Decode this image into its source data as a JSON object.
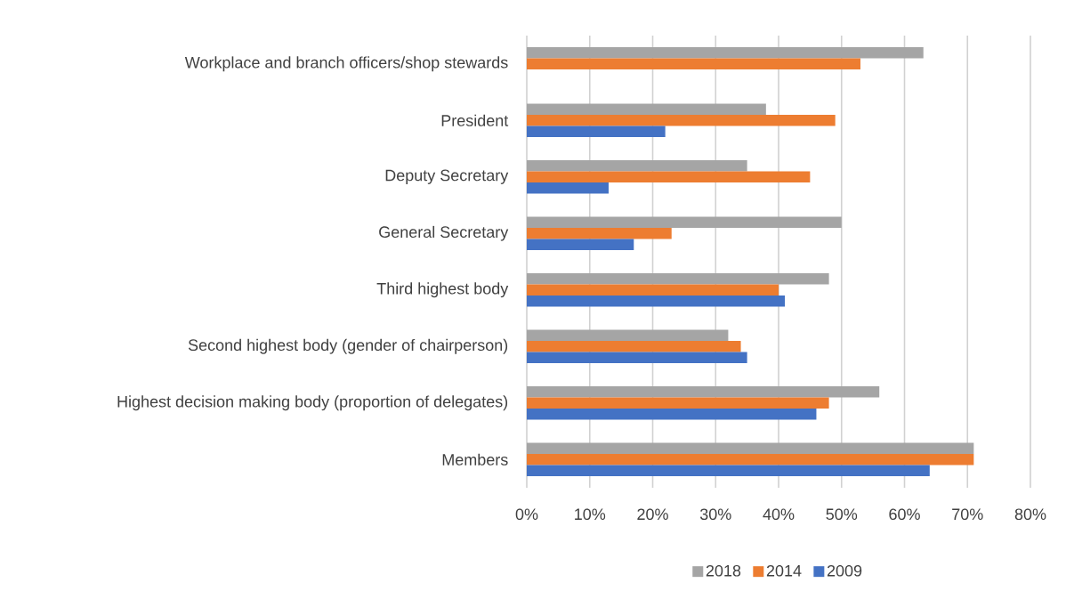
{
  "chart_data": {
    "type": "bar",
    "orientation": "horizontal",
    "categories": [
      "Workplace and branch officers/shop stewards",
      "President",
      "Deputy Secretary",
      "General Secretary",
      "Third highest body",
      "Second highest body (gender of chairperson)",
      "Highest decision making body (proportion of delegates)",
      "Members"
    ],
    "series": [
      {
        "name": "2018",
        "color": "#a5a5a5",
        "values": [
          63,
          38,
          35,
          50,
          48,
          32,
          56,
          71
        ]
      },
      {
        "name": "2014",
        "color": "#ed7d31",
        "values": [
          53,
          49,
          45,
          23,
          40,
          34,
          48,
          71
        ]
      },
      {
        "name": "2009",
        "color": "#4472c4",
        "values": [
          null,
          22,
          13,
          17,
          41,
          35,
          46,
          64
        ]
      }
    ],
    "xlim": [
      0,
      80
    ],
    "xticks": [
      {
        "value": 0,
        "label": "0%"
      },
      {
        "value": 10,
        "label": "10%"
      },
      {
        "value": 20,
        "label": "20%"
      },
      {
        "value": 30,
        "label": "30%"
      },
      {
        "value": 40,
        "label": "40%"
      },
      {
        "value": 50,
        "label": "50%"
      },
      {
        "value": 60,
        "label": "60%"
      },
      {
        "value": 70,
        "label": "70%"
      },
      {
        "value": 80,
        "label": "80%"
      }
    ],
    "grid": "x",
    "legend": "bottom"
  }
}
